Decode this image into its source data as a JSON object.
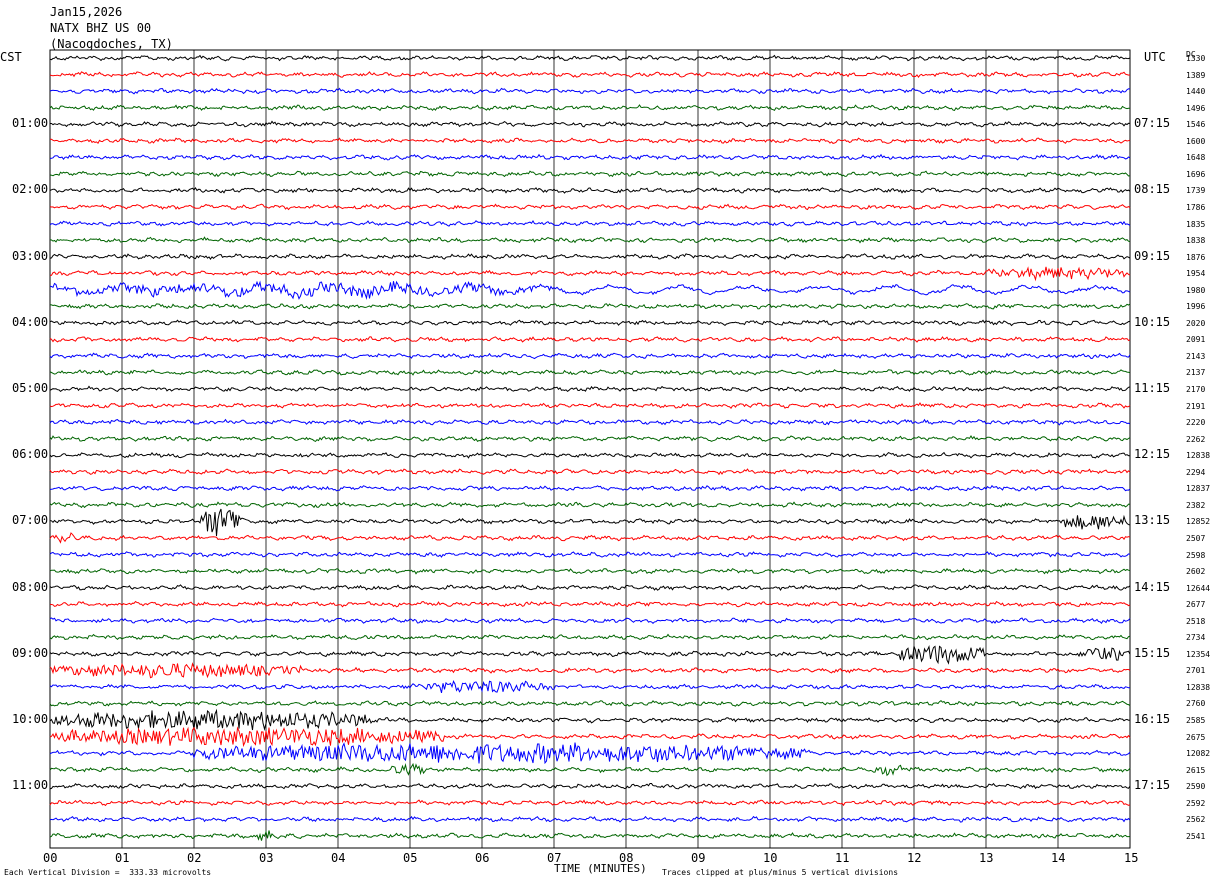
{
  "header": {
    "date": "Jan15,2026",
    "station": "NATX BHZ US 00",
    "location": "(Nacogdoches, TX)"
  },
  "left_tz": "CST",
  "right_tz": "UTC",
  "dc_header": "DC",
  "footer": {
    "division_note": "Each Vertical Division =  333.33 microvolts",
    "xlabel": "TIME (MINUTES)",
    "clip_note": "Traces clipped at plus/minus 5 vertical divisions"
  },
  "colors": {
    "trace_cycle": [
      "#000000",
      "#ff0000",
      "#0000ff",
      "#006400"
    ],
    "grid": "#000000"
  },
  "chart_data": {
    "type": "line",
    "title": "",
    "xlabel": "TIME (MINUTES)",
    "x_ticks": [
      "00",
      "01",
      "02",
      "03",
      "04",
      "05",
      "06",
      "07",
      "08",
      "09",
      "10",
      "11",
      "12",
      "13",
      "14",
      "15"
    ],
    "xlim": [
      0,
      15
    ],
    "rows": 48,
    "minutes_per_row": 15,
    "left_hour_labels": [
      "01:00",
      "02:00",
      "03:00",
      "04:00",
      "05:00",
      "06:00",
      "07:00",
      "08:00",
      "09:00",
      "10:00",
      "11:00"
    ],
    "right_hour_labels": [
      "07:15",
      "08:15",
      "09:15",
      "10:15",
      "11:15",
      "12:15",
      "13:15",
      "14:15",
      "15:15",
      "16:15",
      "17:15"
    ],
    "dc_offsets": [
      "1330",
      "1389",
      "1440",
      "1496",
      "1546",
      "1600",
      "1648",
      "1696",
      "1739",
      "1786",
      "1835",
      "1838",
      "1876",
      "1954",
      "1980",
      "1996",
      "2020",
      "2091",
      "2143",
      "2137",
      "2170",
      "2191",
      "2220",
      "2262",
      "12838",
      "2294",
      "12837",
      "2382",
      "12852",
      "2507",
      "2598",
      "2602",
      "12644",
      "2677",
      "2518",
      "2734",
      "12354",
      "2701",
      "12838",
      "2760",
      "2585",
      "2675",
      "12082",
      "2615",
      "2590",
      "2592",
      "2562",
      "2541"
    ],
    "bursts": [
      {
        "row": 28,
        "start_min": 2.1,
        "end_min": 2.7,
        "amp": 5
      },
      {
        "row": 28,
        "start_min": 14.0,
        "end_min": 15.0,
        "amp": 2.6
      },
      {
        "row": 29,
        "start_min": 0.0,
        "end_min": 0.4,
        "amp": 1.6
      },
      {
        "row": 13,
        "start_min": 13.0,
        "end_min": 15.0,
        "amp": 1.8
      },
      {
        "row": 14,
        "start_min": 0.0,
        "end_min": 7.0,
        "amp": 1.8
      },
      {
        "row": 36,
        "start_min": 11.8,
        "end_min": 13.0,
        "amp": 3.2
      },
      {
        "row": 36,
        "start_min": 14.3,
        "end_min": 15.0,
        "amp": 2.2
      },
      {
        "row": 37,
        "start_min": 0.0,
        "end_min": 3.5,
        "amp": 2.2
      },
      {
        "row": 38,
        "start_min": 5.0,
        "end_min": 7.0,
        "amp": 2.0
      },
      {
        "row": 40,
        "start_min": 0.0,
        "end_min": 4.5,
        "amp": 3.2
      },
      {
        "row": 41,
        "start_min": 0.0,
        "end_min": 5.5,
        "amp": 3.0
      },
      {
        "row": 42,
        "start_min": 2.0,
        "end_min": 10.5,
        "amp": 3.2
      },
      {
        "row": 43,
        "start_min": 4.7,
        "end_min": 5.2,
        "amp": 1.8
      },
      {
        "row": 43,
        "start_min": 11.4,
        "end_min": 11.9,
        "amp": 1.6
      },
      {
        "row": 47,
        "start_min": 2.8,
        "end_min": 3.3,
        "amp": 1.6
      }
    ]
  }
}
